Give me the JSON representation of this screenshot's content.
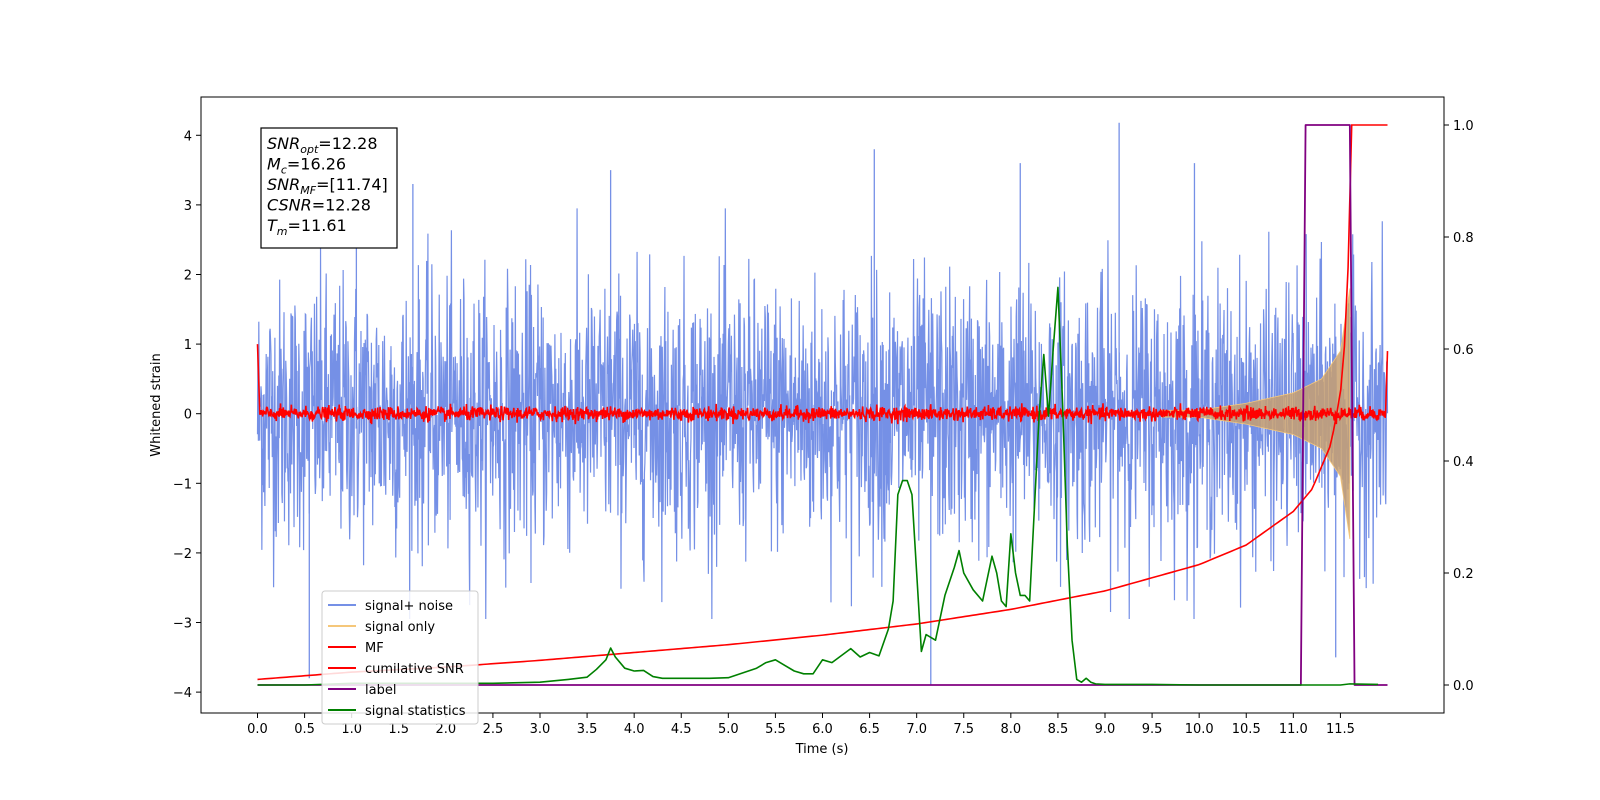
{
  "chart_data": {
    "type": "line",
    "xlabel": "Time (s)",
    "ylabel": "Whitened strain",
    "xlim": [
      -0.6,
      12.6
    ],
    "ylim": [
      -4.3,
      4.55
    ],
    "y2lim": [
      -0.05,
      1.05
    ],
    "x_ticks": [
      "0.0",
      "0.5",
      "1.0",
      "1.5",
      "2.0",
      "2.5",
      "3.0",
      "3.5",
      "4.0",
      "4.5",
      "5.0",
      "5.5",
      "6.0",
      "6.5",
      "7.0",
      "7.5",
      "8.0",
      "8.5",
      "9.0",
      "9.5",
      "10.0",
      "10.5",
      "11.0",
      "11.5"
    ],
    "y_ticks": [
      "4",
      "3",
      "2",
      "1",
      "0",
      "−1",
      "−2",
      "−3",
      "−4"
    ],
    "y2_ticks": [
      "1.0",
      "0.8",
      "0.6",
      "0.4",
      "0.2",
      "0.0"
    ],
    "annotation": {
      "lines": [
        {
          "main": "SNR",
          "sub": "opt",
          "rest": "=12.28"
        },
        {
          "main": "M",
          "sub": "c",
          "rest": "=16.26"
        },
        {
          "main": "SNR",
          "sub": "MF",
          "rest": "=[11.74]"
        },
        {
          "main": "CSNR",
          "sub": "",
          "rest": "=12.28"
        },
        {
          "main": "T",
          "sub": "m",
          "rest": "=11.61"
        }
      ]
    },
    "legend": {
      "placement": "lower-left",
      "entries": [
        {
          "label": "signal+ noise",
          "color": "#7590e6"
        },
        {
          "label": "signal only",
          "color": "#f5c77a"
        },
        {
          "label": "MF",
          "color": "#ff0000"
        },
        {
          "label": "cumilative SNR",
          "color": "#ff0000"
        },
        {
          "label": "label",
          "color": "#800080"
        },
        {
          "label": "signal statistics",
          "color": "#008000"
        }
      ]
    },
    "series": [
      {
        "name": "signal+ noise",
        "axis": "left",
        "color": "#7590e6",
        "description_values": {
          "x_range": [
            0.0,
            12.0
          ],
          "typical_abs_max": 2.4,
          "extreme_peaks": [
            [
              0.55,
              -3.8
            ],
            [
              1.05,
              3.1
            ],
            [
              1.65,
              3.3
            ],
            [
              3.75,
              3.5
            ],
            [
              6.55,
              3.8
            ],
            [
              7.15,
              -3.9
            ],
            [
              8.1,
              3.6
            ],
            [
              9.15,
              4.18
            ],
            [
              9.95,
              3.6
            ],
            [
              11.45,
              -3.5
            ]
          ]
        }
      },
      {
        "name": "signal only",
        "axis": "left",
        "color": "#f5c77a",
        "x": [
          0.0,
          10.0,
          10.5,
          11.0,
          11.3,
          11.5,
          11.6
        ],
        "envelope": [
          0.0,
          0.05,
          0.15,
          0.3,
          0.5,
          0.9,
          1.8
        ]
      },
      {
        "name": "MF",
        "axis": "left",
        "color": "#ff0000",
        "x": [
          0.0,
          0.02,
          11.98,
          12.0
        ],
        "y": [
          1.0,
          0.0,
          0.0,
          0.9
        ],
        "noise_amplitude": 0.1
      },
      {
        "name": "cumilative SNR",
        "axis": "right",
        "color": "#ff0000",
        "x": [
          0.0,
          1.0,
          2.0,
          3.0,
          4.0,
          5.0,
          6.0,
          7.0,
          8.0,
          9.0,
          10.0,
          10.5,
          11.0,
          11.2,
          11.4,
          11.5,
          11.55,
          11.6,
          11.62,
          12.0
        ],
        "y": [
          0.01,
          0.023,
          0.032,
          0.044,
          0.058,
          0.072,
          0.089,
          0.109,
          0.135,
          0.168,
          0.215,
          0.25,
          0.31,
          0.35,
          0.43,
          0.52,
          0.62,
          0.82,
          1.0,
          1.0
        ]
      },
      {
        "name": "label",
        "axis": "right",
        "color": "#800080",
        "x": [
          0.0,
          11.08,
          11.13,
          11.6,
          11.65,
          12.0
        ],
        "y": [
          0.0,
          0.0,
          1.0,
          1.0,
          0.0,
          0.0
        ]
      },
      {
        "name": "signal statistics",
        "axis": "right",
        "color": "#008000",
        "x": [
          0.0,
          0.5,
          1.0,
          1.5,
          2.0,
          2.5,
          3.0,
          3.3,
          3.5,
          3.6,
          3.7,
          3.75,
          3.8,
          3.9,
          4.0,
          4.1,
          4.2,
          4.3,
          4.5,
          4.8,
          5.0,
          5.3,
          5.4,
          5.5,
          5.6,
          5.7,
          5.8,
          5.9,
          6.0,
          6.1,
          6.3,
          6.4,
          6.5,
          6.6,
          6.7,
          6.75,
          6.8,
          6.85,
          6.9,
          6.95,
          7.0,
          7.05,
          7.1,
          7.2,
          7.3,
          7.4,
          7.45,
          7.5,
          7.6,
          7.7,
          7.8,
          7.85,
          7.9,
          7.95,
          8.0,
          8.05,
          8.1,
          8.15,
          8.2,
          8.3,
          8.35,
          8.4,
          8.45,
          8.5,
          8.55,
          8.6,
          8.65,
          8.7,
          8.75,
          8.8,
          8.85,
          8.9,
          9.0,
          9.5,
          10.0,
          11.0,
          11.5,
          11.6,
          11.9
        ],
        "y": [
          0.0,
          0.0,
          0.003,
          0.003,
          0.003,
          0.003,
          0.005,
          0.01,
          0.014,
          0.028,
          0.045,
          0.066,
          0.05,
          0.03,
          0.025,
          0.026,
          0.015,
          0.012,
          0.012,
          0.012,
          0.013,
          0.03,
          0.04,
          0.045,
          0.035,
          0.025,
          0.02,
          0.02,
          0.045,
          0.04,
          0.065,
          0.05,
          0.058,
          0.052,
          0.1,
          0.15,
          0.34,
          0.365,
          0.365,
          0.34,
          0.2,
          0.06,
          0.09,
          0.08,
          0.16,
          0.21,
          0.24,
          0.2,
          0.17,
          0.15,
          0.23,
          0.2,
          0.15,
          0.14,
          0.27,
          0.2,
          0.16,
          0.16,
          0.15,
          0.48,
          0.59,
          0.48,
          0.6,
          0.71,
          0.5,
          0.25,
          0.08,
          0.01,
          0.005,
          0.012,
          0.005,
          0.002,
          0.001,
          0.001,
          0.0,
          0.0,
          0.0,
          0.002,
          0.001
        ]
      }
    ]
  }
}
